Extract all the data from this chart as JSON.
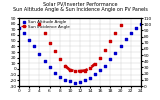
{
  "title": "Solar PV/Inverter Performance\nSun Altitude Angle & Sun Incidence Angle on PV Panels",
  "title_fontsize": 3.5,
  "background_color": "#ffffff",
  "grid_color": "#cccccc",
  "xlim": [
    0,
    24
  ],
  "ylim_left": [
    -30,
    90
  ],
  "ylim_right": [
    0,
    110
  ],
  "xtick_vals": [
    0,
    2,
    4,
    6,
    8,
    10,
    12,
    14,
    16,
    18,
    20,
    22,
    24
  ],
  "ytick_left": [
    -30,
    -20,
    -10,
    0,
    10,
    20,
    30,
    40,
    50,
    60,
    70,
    80,
    90
  ],
  "ytick_right": [
    0,
    10,
    20,
    30,
    40,
    50,
    60,
    70,
    80,
    90,
    100,
    110
  ],
  "sun_altitude_x": [
    0,
    1,
    2,
    3,
    4,
    5,
    6,
    7,
    8,
    9,
    10,
    11,
    12,
    13,
    14,
    15,
    16,
    17,
    18,
    19,
    20,
    21,
    22,
    23,
    24
  ],
  "sun_altitude_y": [
    72,
    63,
    52,
    40,
    27,
    14,
    3,
    -7,
    -14,
    -19,
    -22,
    -24,
    -23,
    -20,
    -15,
    -9,
    -2,
    6,
    17,
    29,
    41,
    53,
    63,
    72,
    80
  ],
  "incidence_x": [
    4,
    5,
    6,
    7,
    8,
    9,
    10,
    11,
    12,
    13,
    14,
    15,
    16,
    17,
    18,
    19,
    20
  ],
  "incidence_y": [
    100,
    85,
    70,
    56,
    43,
    33,
    26,
    24,
    24,
    25,
    29,
    36,
    46,
    58,
    72,
    86,
    98
  ],
  "incidence_dash_x": [
    9,
    10,
    11,
    12,
    13,
    14,
    15
  ],
  "incidence_dash_y": [
    33,
    26,
    24,
    24,
    25,
    29,
    36
  ],
  "altitude_color": "#0000cc",
  "incidence_color": "#cc0000",
  "legend_altitude": "Sun Altitude Angle",
  "legend_incidence": "Sun Incidence Angle",
  "marker_size": 2.0,
  "tick_fontsize": 3.2,
  "legend_fontsize": 3.0
}
